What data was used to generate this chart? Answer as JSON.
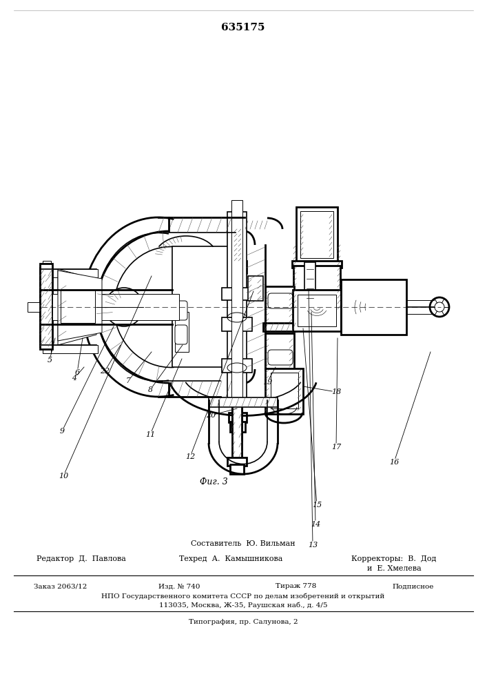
{
  "patent_number": "635175",
  "fig_label": "Фиг. 3",
  "background_color": "#ffffff",
  "footer": {
    "sestavitel": "Составитель  Ю. Вильман",
    "redaktor": "Редактор  Д.  Павлова",
    "tehred": "Техред  А.  Камышникова",
    "korrektory": "Корректоры:  В.  Дод",
    "korrektory2": "и  Е. Хмелева",
    "zakaz": "Заказ 2063/12",
    "izd": "Изд. № 740",
    "tirazh": "Тираж 778",
    "podpisnoe": "Подписное",
    "npo": "НПО Государственного комитета СССР по делам изобретений и открытий",
    "address": "113035, Москва, Ж-35, Раушская наб., д. 4/5",
    "tipografia": "Типография, пр. Салунова, 2"
  }
}
